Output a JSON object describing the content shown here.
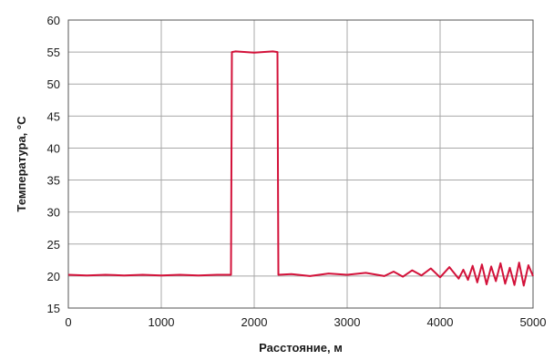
{
  "chart_data": {
    "type": "line",
    "title": "",
    "xlabel": "Расстояние, м",
    "ylabel": "Температура, °C",
    "xlim": [
      0,
      5000
    ],
    "ylim": [
      15,
      60
    ],
    "x_ticks": [
      0,
      1000,
      2000,
      3000,
      4000,
      5000
    ],
    "y_ticks": [
      15,
      20,
      25,
      30,
      35,
      40,
      45,
      50,
      55,
      60
    ],
    "x_tick_labels": [
      "0",
      "1000",
      "2000",
      "3000",
      "4000",
      "5000"
    ],
    "y_tick_labels": [
      "15",
      "20",
      "25",
      "30",
      "35",
      "40",
      "45",
      "50",
      "55",
      "60"
    ],
    "grid": true,
    "legend": "none",
    "colors": {
      "line": "#d3123a",
      "grid": "#a8a8a8",
      "frame": "#555555",
      "plot_background": "#ffffff"
    },
    "series": [
      {
        "x": [
          0,
          200,
          400,
          600,
          800,
          1000,
          1200,
          1400,
          1600,
          1750,
          1760,
          1800,
          2000,
          2200,
          2250,
          2260,
          2400,
          2600,
          2800,
          3000,
          3200,
          3400,
          3500,
          3600,
          3700,
          3800,
          3900,
          4000,
          4100,
          4200,
          4250,
          4300,
          4350,
          4400,
          4450,
          4500,
          4550,
          4600,
          4650,
          4700,
          4750,
          4800,
          4850,
          4900,
          4950,
          5000
        ],
        "y": [
          20.2,
          20.1,
          20.2,
          20.1,
          20.2,
          20.1,
          20.2,
          20.1,
          20.2,
          20.2,
          55.0,
          55.1,
          54.9,
          55.1,
          55.0,
          20.2,
          20.3,
          20.0,
          20.4,
          20.2,
          20.5,
          20.0,
          20.7,
          19.9,
          20.9,
          20.1,
          21.2,
          19.8,
          21.4,
          19.6,
          21.0,
          19.4,
          21.6,
          19.0,
          21.8,
          18.7,
          21.5,
          19.2,
          22.0,
          18.8,
          21.3,
          18.6,
          22.1,
          18.5,
          21.7,
          20.0
        ]
      }
    ]
  }
}
